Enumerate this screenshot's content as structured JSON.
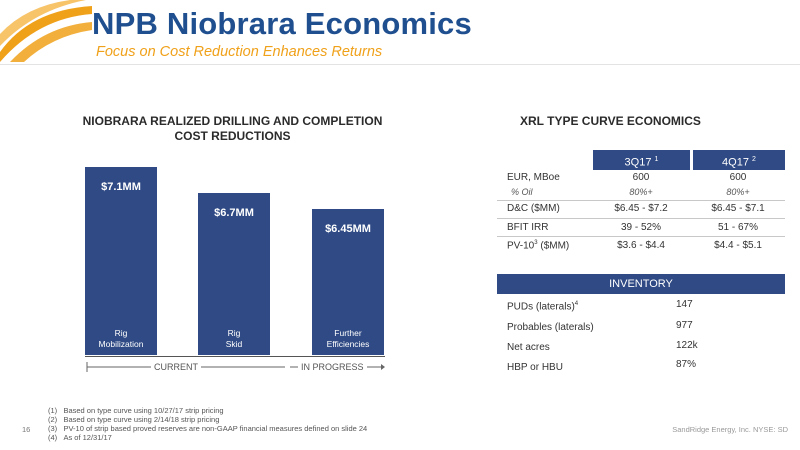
{
  "header": {
    "title": "NPB Niobrara Economics",
    "subtitle": "Focus on Cost Reduction Enhances Returns"
  },
  "colors": {
    "primary": "#2f4a84",
    "title_blue": "#1f4f8f",
    "accent_orange": "#f0a11a"
  },
  "cost_chart": {
    "title_line1": "NIOBRARA REALIZED DRILLING AND COMPLETION",
    "title_line2": "COST REDUCTIONS",
    "bracket_current": "CURRENT",
    "bracket_progress": "IN PROGRESS"
  },
  "chart_data": {
    "type": "bar",
    "categories": [
      "Rig Mobilization",
      "Rig Skid",
      "Further Efficiencies"
    ],
    "category_lines": [
      [
        "Rig",
        "Mobilization"
      ],
      [
        "Rig",
        "Skid"
      ],
      [
        "Further",
        "Efficiencies"
      ]
    ],
    "values": [
      7.1,
      6.7,
      6.45
    ],
    "value_labels": [
      "$7.1MM",
      "$6.7MM",
      "$6.45MM"
    ],
    "title": "NIOBRARA REALIZED DRILLING AND COMPLETION COST REDUCTIONS"
  },
  "xrl": {
    "title": "XRL TYPE CURVE ECONOMICS",
    "col1": "3Q17",
    "col1_sup": "1",
    "col2": "4Q17",
    "col2_sup": "2",
    "rows": [
      {
        "label": "EUR, MBoe",
        "v1": "600",
        "v2": "600"
      },
      {
        "label": "% Oil",
        "v1": "80%+",
        "v2": "80%+"
      },
      {
        "label": "D&C ($MM)",
        "v1": "$6.45 - $7.2",
        "v2": "$6.45 - $7.1"
      },
      {
        "label": "BFIT IRR",
        "v1": "39 - 52%",
        "v2": "51 - 67%"
      },
      {
        "label_pre": "PV-10",
        "label_sup": "3",
        "label_post": " ($MM)",
        "v1": "$3.6 - $4.4",
        "v2": "$4.4 - $5.1"
      }
    ]
  },
  "inventory": {
    "title": "INVENTORY",
    "rows": [
      {
        "label_pre": "PUDs (laterals)",
        "label_sup": "4",
        "value": "147"
      },
      {
        "label_pre": "Probables (laterals)",
        "label_sup": "",
        "value": "977"
      },
      {
        "label_pre": "Net acres",
        "label_sup": "",
        "value": "122k"
      },
      {
        "label_pre": "HBP or HBU",
        "label_sup": "",
        "value": "87%"
      }
    ]
  },
  "footnotes": [
    {
      "num": "(1)",
      "text": "Based on type curve using 10/27/17 strip pricing"
    },
    {
      "num": "(2)",
      "text": "Based on type curve using 2/14/18 strip pricing"
    },
    {
      "num": "(3)",
      "text": "PV-10 of strip based proved reserves are non-GAAP financial measures defined on slide 24"
    },
    {
      "num": "(4)",
      "text": "As of 12/31/17"
    }
  ],
  "footer": {
    "page": "16",
    "company": "SandRidge Energy, Inc. NYSE: SD"
  }
}
